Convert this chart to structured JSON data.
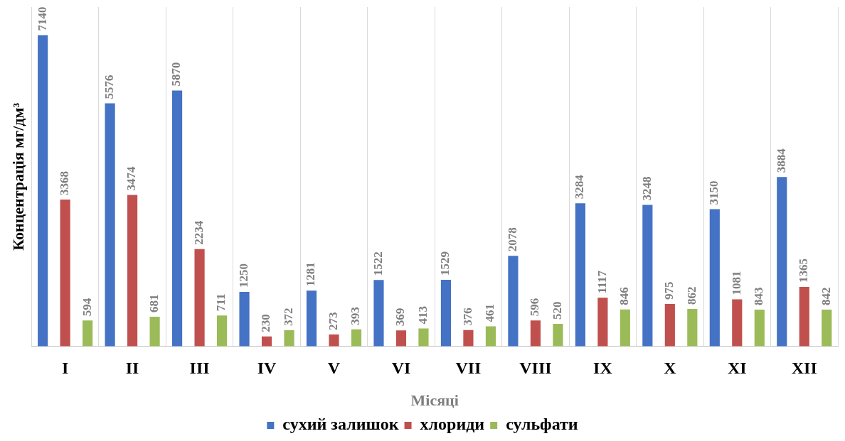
{
  "chart_data": {
    "type": "bar",
    "xlabel": "Місяці",
    "ylabel": "Концентрація мг/дм³",
    "categories": [
      "I",
      "II",
      "III",
      "IV",
      "V",
      "VI",
      "VII",
      "VIII",
      "IX",
      "X",
      "XI",
      "XII"
    ],
    "series": [
      {
        "name": "сухий залишок",
        "color": "#4472c4",
        "values": [
          7140,
          5576,
          5870,
          1250,
          1281,
          1522,
          1529,
          2078,
          3284,
          3248,
          3150,
          3884
        ]
      },
      {
        "name": "хлориди",
        "color": "#c0504d",
        "values": [
          3368,
          3474,
          2234,
          230,
          273,
          369,
          376,
          596,
          1117,
          975,
          1081,
          1365
        ]
      },
      {
        "name": "сульфати",
        "color": "#9bbb59",
        "values": [
          594,
          681,
          711,
          372,
          393,
          413,
          461,
          520,
          846,
          862,
          843,
          842
        ]
      }
    ],
    "data_labels": true,
    "grid": "x",
    "legend": "bottom",
    "tick_labels": "x"
  }
}
